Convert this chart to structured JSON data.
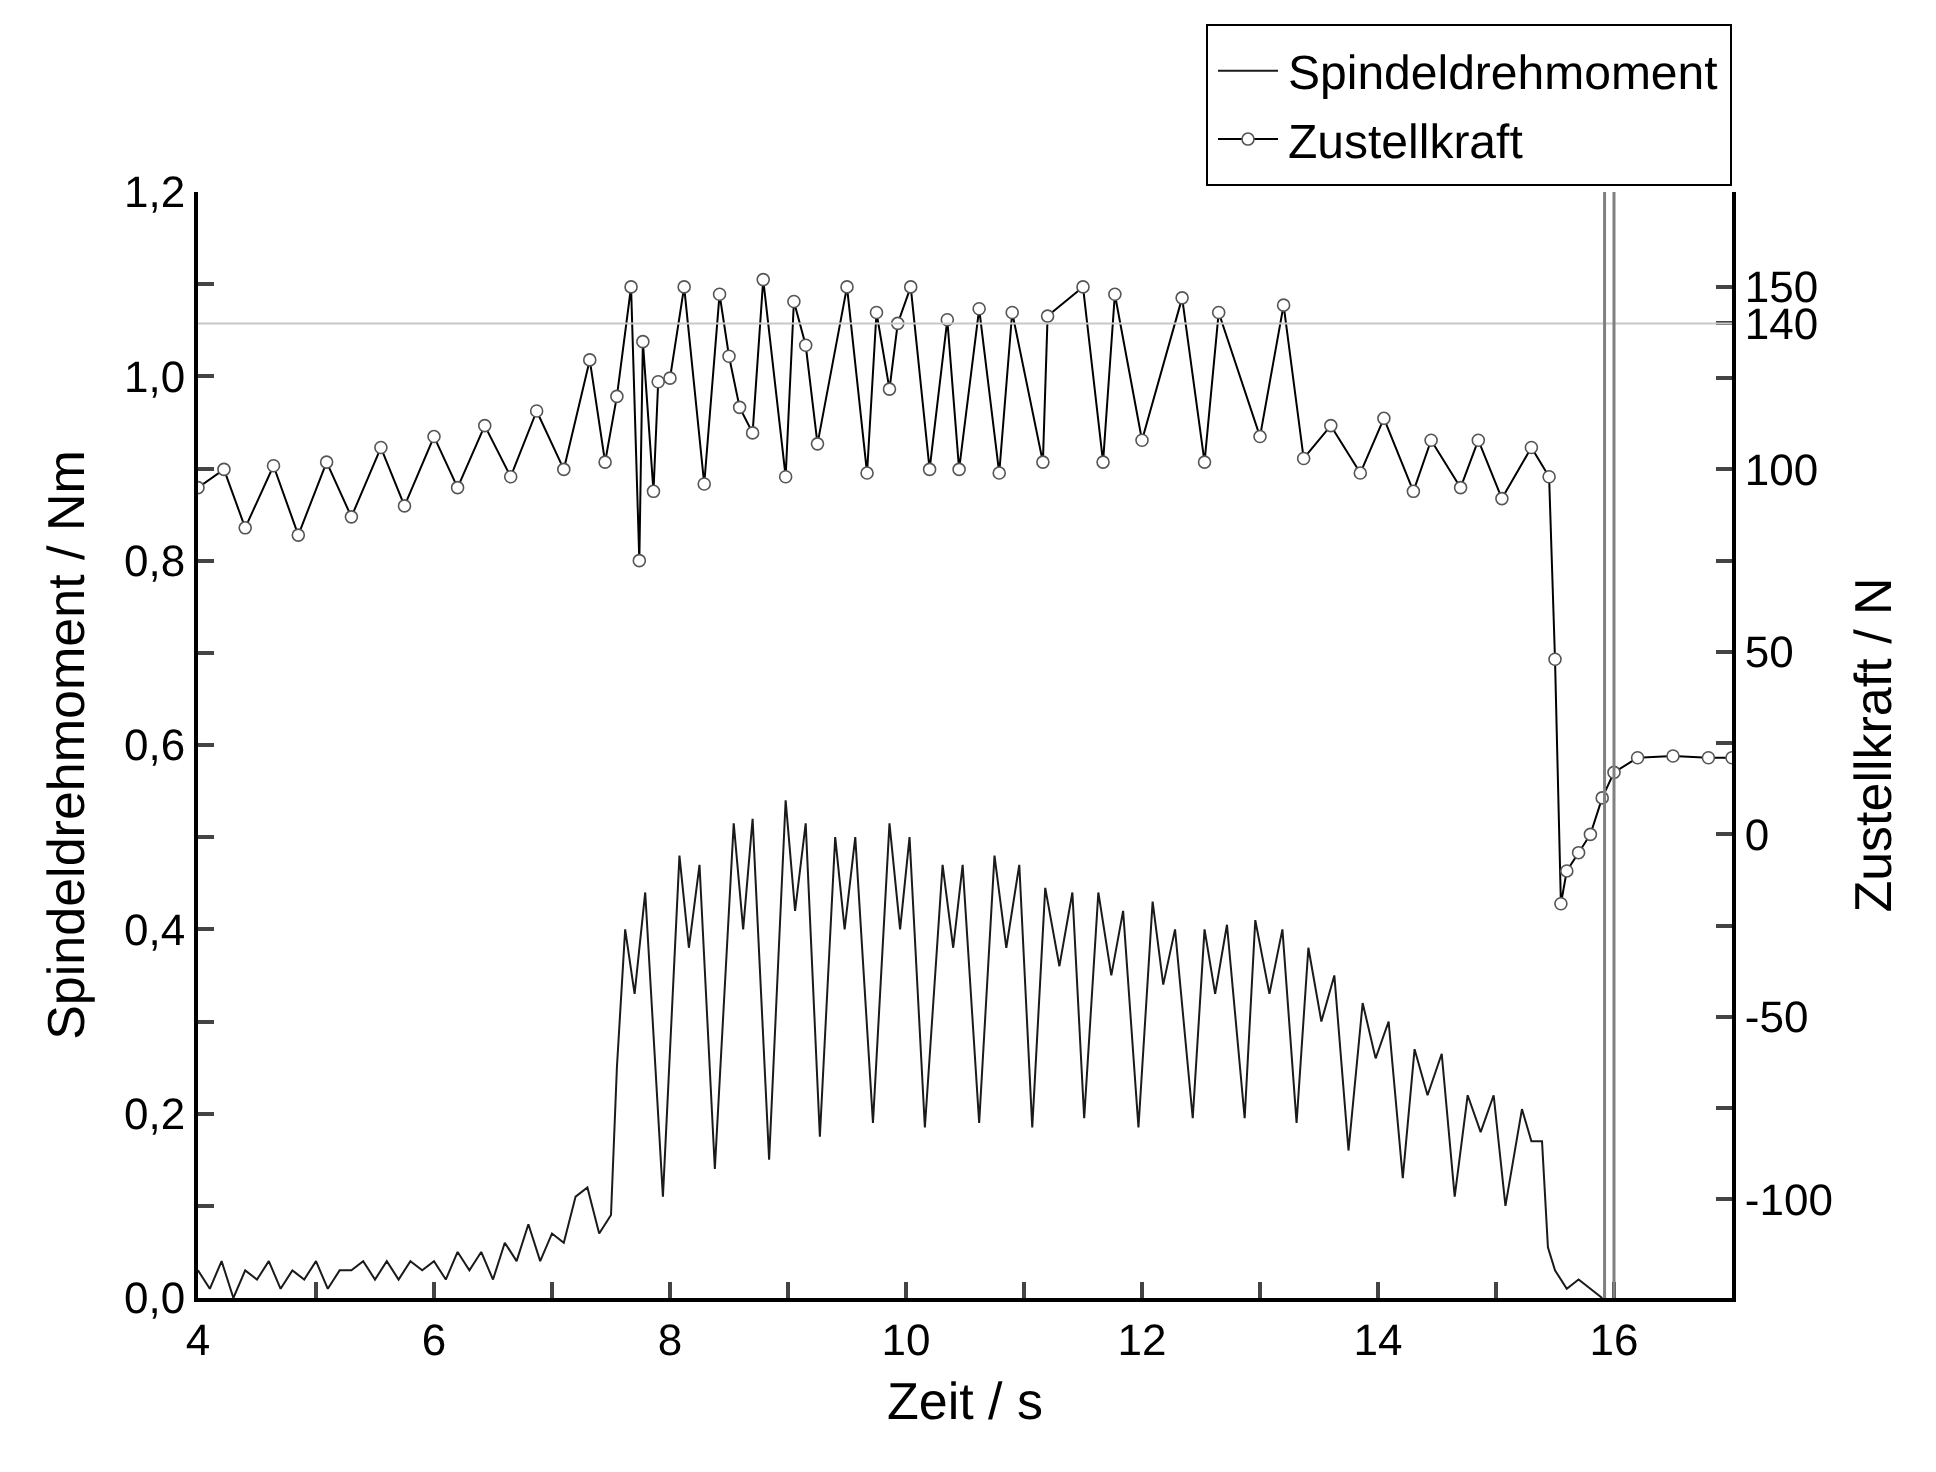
{
  "chart_data": {
    "type": "line",
    "xlabel": "Zeit / s",
    "ylabel": "Spindeldrehmoment / Nm",
    "y2label": "Zustellkraft / N",
    "xlim": [
      4,
      17
    ],
    "xticks": [
      4,
      {
        "value": 5,
        "label": null
      },
      6,
      {
        "value": 7,
        "label": null
      },
      8,
      {
        "value": 9,
        "label": null
      },
      10,
      {
        "value": 11,
        "label": null
      },
      12,
      {
        "value": 13,
        "label": null
      },
      14,
      {
        "value": 15,
        "label": null
      },
      16,
      {
        "value": 17,
        "label": null
      }
    ],
    "ylim": [
      0,
      1.2
    ],
    "yticks": [
      {
        "value": 0,
        "label": "0,0"
      },
      {
        "value": 0.1,
        "label": null
      },
      {
        "value": 0.2,
        "label": "0,2"
      },
      {
        "value": 0.3,
        "label": null
      },
      {
        "value": 0.4,
        "label": "0,4"
      },
      {
        "value": 0.5,
        "label": null
      },
      {
        "value": 0.6,
        "label": "0,6"
      },
      {
        "value": 0.7,
        "label": null
      },
      {
        "value": 0.8,
        "label": "0,8"
      },
      {
        "value": 0.9,
        "label": null
      },
      {
        "value": 1.0,
        "label": "1,0"
      },
      {
        "value": 1.1,
        "label": null
      },
      {
        "value": 1.2,
        "label": "1,2"
      }
    ],
    "y2lim": [
      -127,
      176
    ],
    "y2ticks": [
      -100,
      {
        "value": -75,
        "label": null
      },
      -50,
      {
        "value": -25,
        "label": null
      },
      0,
      {
        "value": 25,
        "label": null
      },
      50,
      {
        "value": 75,
        "label": null
      },
      100,
      {
        "value": 125,
        "label": null
      },
      140,
      150
    ],
    "grid": false,
    "legend": "top right",
    "ref_lines": [
      {
        "axis": "y2",
        "value": 140,
        "color": "#c8c8c8"
      },
      {
        "axis": "x",
        "value": 15.92,
        "color": "#808080"
      },
      {
        "axis": "x",
        "value": 16.0,
        "color": "#808080"
      }
    ],
    "series": [
      {
        "name": "Spindeldrehmoment",
        "color": "#1a1a1a",
        "marker": "none",
        "x": [
          4.0,
          4.1,
          4.2,
          4.3,
          4.4,
          4.5,
          4.6,
          4.7,
          4.8,
          4.9,
          5.0,
          5.1,
          5.2,
          5.3,
          5.4,
          5.5,
          5.6,
          5.7,
          5.8,
          5.9,
          6.0,
          6.1,
          6.2,
          6.3,
          6.4,
          6.5,
          6.6,
          6.7,
          6.8,
          6.9,
          7.0,
          7.1,
          7.2,
          7.3,
          7.4,
          7.5,
          7.55,
          7.62,
          7.7,
          7.79,
          7.94,
          8.08,
          8.16,
          8.25,
          8.38,
          8.54,
          8.62,
          8.7,
          8.84,
          8.98,
          9.06,
          9.15,
          9.27,
          9.4,
          9.48,
          9.57,
          9.72,
          9.86,
          9.95,
          10.03,
          10.16,
          10.31,
          10.4,
          10.48,
          10.62,
          10.75,
          10.85,
          10.96,
          11.07,
          11.18,
          11.3,
          11.41,
          11.51,
          11.63,
          11.74,
          11.84,
          11.97,
          12.09,
          12.18,
          12.28,
          12.43,
          12.53,
          12.62,
          12.72,
          12.87,
          12.96,
          13.08,
          13.19,
          13.31,
          13.41,
          13.52,
          13.63,
          13.75,
          13.87,
          13.98,
          14.09,
          14.21,
          14.31,
          14.42,
          14.54,
          14.65,
          14.76,
          14.87,
          14.98,
          15.08,
          15.22,
          15.3,
          15.39,
          15.44,
          15.5,
          15.6,
          15.7,
          15.8,
          15.9
        ],
        "values": [
          0.03,
          0.01,
          0.04,
          0.0,
          0.03,
          0.02,
          0.04,
          0.01,
          0.03,
          0.02,
          0.04,
          0.01,
          0.03,
          0.03,
          0.04,
          0.02,
          0.04,
          0.02,
          0.04,
          0.03,
          0.04,
          0.02,
          0.05,
          0.03,
          0.05,
          0.02,
          0.06,
          0.04,
          0.08,
          0.04,
          0.07,
          0.06,
          0.11,
          0.12,
          0.07,
          0.09,
          0.25,
          0.4,
          0.33,
          0.44,
          0.11,
          0.48,
          0.38,
          0.47,
          0.14,
          0.515,
          0.4,
          0.52,
          0.15,
          0.54,
          0.42,
          0.515,
          0.175,
          0.5,
          0.4,
          0.5,
          0.19,
          0.515,
          0.4,
          0.5,
          0.185,
          0.47,
          0.38,
          0.47,
          0.19,
          0.48,
          0.38,
          0.47,
          0.185,
          0.445,
          0.36,
          0.44,
          0.195,
          0.44,
          0.35,
          0.42,
          0.185,
          0.43,
          0.34,
          0.4,
          0.195,
          0.4,
          0.33,
          0.405,
          0.195,
          0.41,
          0.33,
          0.4,
          0.19,
          0.38,
          0.3,
          0.35,
          0.16,
          0.32,
          0.26,
          0.3,
          0.13,
          0.27,
          0.22,
          0.265,
          0.11,
          0.22,
          0.18,
          0.22,
          0.1,
          0.205,
          0.17,
          0.17,
          0.055,
          0.03,
          0.01,
          0.02,
          0.01,
          0.0
        ]
      },
      {
        "name": "Zustellkraft",
        "color": "#000000",
        "marker": "circle",
        "axis": "y2",
        "x": [
          4.0,
          4.22,
          4.4,
          4.64,
          4.85,
          5.09,
          5.3,
          5.55,
          5.75,
          6.0,
          6.2,
          6.43,
          6.65,
          6.87,
          7.1,
          7.32,
          7.45,
          7.55,
          7.67,
          7.74,
          7.77,
          7.86,
          7.9,
          8.0,
          8.12,
          8.29,
          8.42,
          8.5,
          8.59,
          8.7,
          8.79,
          8.98,
          9.05,
          9.15,
          9.25,
          9.5,
          9.67,
          9.75,
          9.86,
          9.93,
          10.04,
          10.2,
          10.35,
          10.45,
          10.62,
          10.79,
          10.9,
          11.16,
          11.2,
          11.5,
          11.67,
          11.77,
          12.0,
          12.34,
          12.53,
          12.65,
          13.0,
          13.2,
          13.37,
          13.6,
          13.85,
          14.05,
          14.3,
          14.45,
          14.7,
          14.85,
          15.05,
          15.3,
          15.45,
          15.5,
          15.55,
          15.6,
          15.7,
          15.8,
          15.9,
          16.0,
          16.2,
          16.5,
          16.8,
          17.0
        ],
        "values": [
          95,
          100,
          84,
          101,
          82,
          102,
          87,
          106,
          90,
          109,
          95,
          112,
          98,
          116,
          100,
          130,
          102,
          120,
          150,
          75,
          135,
          94,
          124,
          125,
          150,
          96,
          148,
          131,
          117,
          110,
          152,
          98,
          146,
          134,
          107,
          150,
          99,
          143,
          122,
          140,
          150,
          100,
          141,
          100,
          144,
          99,
          143,
          102,
          142,
          150,
          102,
          148,
          108,
          147,
          102,
          143,
          109,
          145,
          103,
          112,
          99,
          114,
          94,
          108,
          95,
          108,
          92,
          106,
          98,
          48,
          -19,
          -10,
          -5,
          0,
          10,
          17,
          21,
          21.5,
          21,
          21
        ]
      }
    ]
  }
}
